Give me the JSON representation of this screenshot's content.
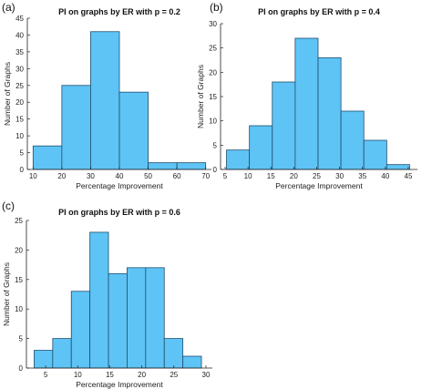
{
  "panels": {
    "a": {
      "label": "(a)"
    },
    "b": {
      "label": "(b)"
    },
    "c": {
      "label": "(c)"
    }
  },
  "colors": {
    "bar_fill": "#5ec4f5",
    "bar_edge": "#1f4e6e",
    "axis": "#222222"
  },
  "chart_data": [
    {
      "id": "a",
      "type": "bar",
      "title": "PI on graphs by ER with p = 0.2",
      "xlabel": "Percentage Improvement",
      "ylabel": "Number of Graphs",
      "bin_edges": [
        10,
        20,
        30,
        40,
        50,
        60,
        70
      ],
      "values": [
        7,
        25,
        41,
        23,
        2,
        2
      ],
      "xlim": [
        8,
        72
      ],
      "ylim": [
        0,
        45
      ],
      "xticks": [
        10,
        20,
        30,
        40,
        50,
        60,
        70
      ],
      "yticks": [
        0,
        5,
        10,
        15,
        20,
        25,
        30,
        35,
        40,
        45
      ],
      "grid": false
    },
    {
      "id": "b",
      "type": "bar",
      "title": "PI on graphs by ER with p = 0.4",
      "xlabel": "Percentage Improvement",
      "ylabel": "Number of Graphs",
      "bin_edges": [
        5.3,
        10.3,
        15.3,
        20.3,
        25.3,
        30.3,
        35.3,
        40.3,
        45.3
      ],
      "values": [
        4,
        9,
        18,
        27,
        23,
        12,
        6,
        1
      ],
      "xlim": [
        4,
        47
      ],
      "ylim": [
        0,
        30
      ],
      "xticks": [
        5,
        10,
        15,
        20,
        25,
        30,
        35,
        40,
        45
      ],
      "yticks": [
        0,
        5,
        10,
        15,
        20,
        25,
        30
      ],
      "grid": false
    },
    {
      "id": "c",
      "type": "bar",
      "title": "PI on graphs by ER with p = 0.6",
      "xlabel": "Percentage Improvement",
      "ylabel": "Number of Graphs",
      "bin_edges": [
        3.2,
        6.1,
        9.0,
        11.9,
        14.8,
        17.7,
        20.6,
        23.5,
        26.4,
        29.3
      ],
      "values": [
        3,
        5,
        13,
        23,
        16,
        17,
        17,
        5,
        2
      ],
      "xlim": [
        2,
        31
      ],
      "ylim": [
        0,
        25
      ],
      "xticks": [
        5,
        10,
        15,
        20,
        25,
        30
      ],
      "yticks": [
        0,
        5,
        10,
        15,
        20,
        25
      ],
      "grid": false
    }
  ]
}
